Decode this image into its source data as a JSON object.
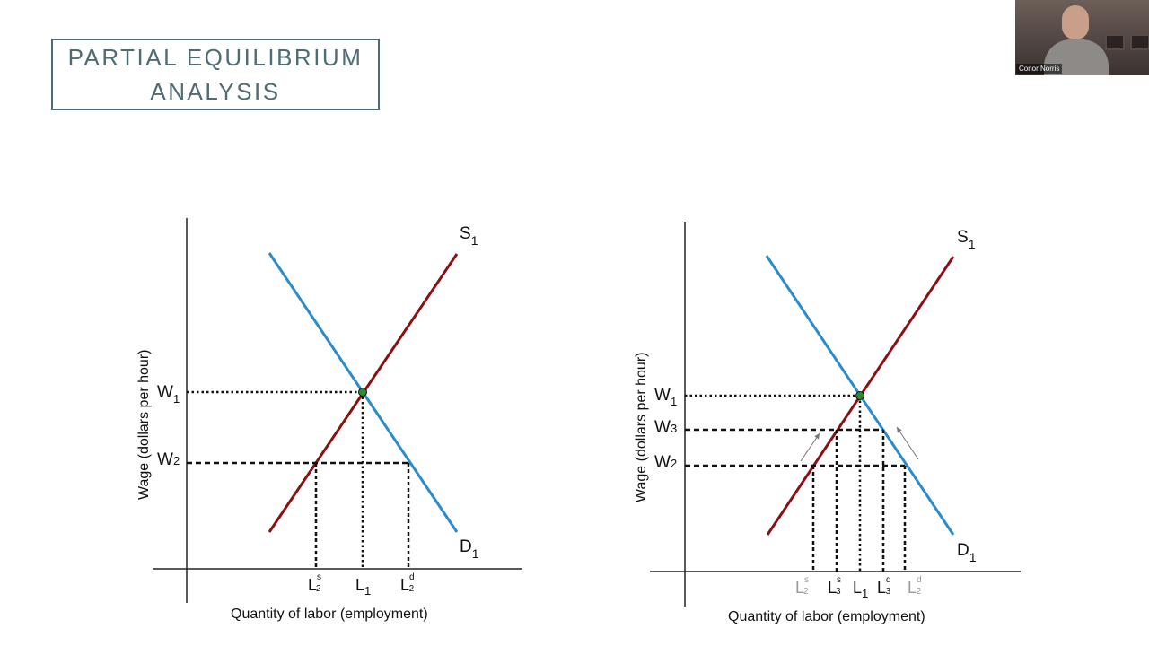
{
  "slide": {
    "title_line1": "PARTIAL EQUILIBRIUM",
    "title_line2": "ANALYSIS"
  },
  "video": {
    "participant_name": "Conor Norris"
  },
  "colors": {
    "title": "#4f6b73",
    "supply": "#8b1010",
    "demand": "#2a8ccc",
    "equilibrium_point": "#2e8b2e"
  },
  "left_diagram": {
    "y_axis_label": "Wage (dollars per hour)",
    "x_axis_label": "Quantity of labor (employment)",
    "supply_label": "S",
    "supply_sub": "1",
    "demand_label": "D",
    "demand_sub": "1",
    "w1": "W",
    "w1_sub": "1",
    "w2": "W",
    "w2_sub": "2",
    "ls2": "L",
    "ls2_sub": "2",
    "ls2_sup": "s",
    "l1": "L",
    "l1_sub": "1",
    "ld2": "L",
    "ld2_sub": "2",
    "ld2_sup": "d"
  },
  "right_diagram": {
    "y_axis_label": "Wage (dollars per hour)",
    "x_axis_label": "Quantity of labor (employment)",
    "supply_label": "S",
    "supply_sub": "1",
    "demand_label": "D",
    "demand_sub": "1",
    "w1": "W",
    "w1_sub": "1",
    "w3": "W",
    "w3_sub": "3",
    "w2": "W",
    "w2_sub": "2",
    "ls2": "L",
    "ls2_sub": "2",
    "ls2_sup": "s",
    "ls3": "L",
    "ls3_sub": "3",
    "ls3_sup": "s",
    "l1": "L",
    "l1_sub": "1",
    "ld3": "L",
    "ld3_sub": "3",
    "ld3_sup": "d",
    "ld2": "L",
    "ld2_sub": "2",
    "ld2_sup": "d"
  }
}
